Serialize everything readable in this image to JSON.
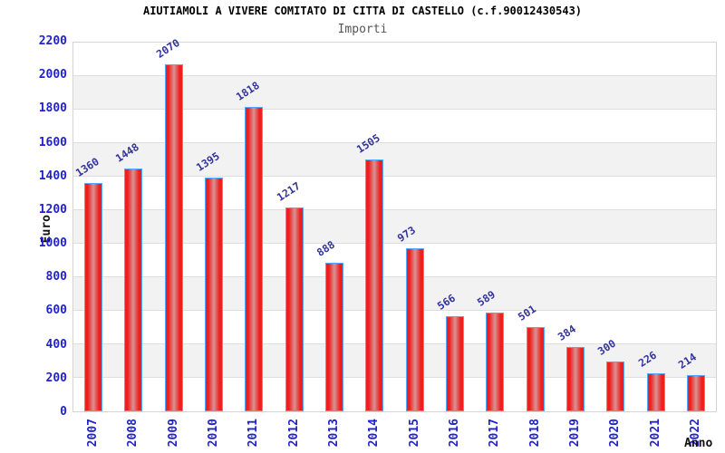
{
  "header": {
    "title": "AIUTIAMOLI A VIVERE COMITATO DI CITTA DI CASTELLO (c.f.90012430543)",
    "subtitle": "Importi"
  },
  "chart_data": {
    "type": "bar",
    "title": "AIUTIAMOLI A VIVERE COMITATO DI CITTA DI CASTELLO (c.f.90012430543)",
    "subtitle": "Importi",
    "xlabel": "Anno",
    "ylabel": "Euro",
    "categories": [
      "2007",
      "2008",
      "2009",
      "2010",
      "2011",
      "2012",
      "2013",
      "2014",
      "2015",
      "2016",
      "2017",
      "2018",
      "2019",
      "2020",
      "2021",
      "2022"
    ],
    "values": [
      1360,
      1448,
      2070,
      1395,
      1818,
      1217,
      888,
      1505,
      973,
      566,
      589,
      501,
      384,
      300,
      226,
      214
    ],
    "yticks": [
      0,
      200,
      400,
      600,
      800,
      1000,
      1200,
      1400,
      1600,
      1800,
      2000,
      2200
    ],
    "ylim": [
      0,
      2200
    ],
    "ytick_step": 200,
    "grid": true,
    "legend": false,
    "bands_alternating": true
  },
  "colors": {
    "bar_edge": "#ee1f1f",
    "bar_center": "#d89494",
    "bar_border": "#55aaff",
    "tick_label": "#2222cc",
    "value_label": "#33339b",
    "band_gray": "#f2f2f2",
    "gridline": "#dedede",
    "plot_border": "#d4d4d4",
    "title": "#000000",
    "subtitle": "#555555",
    "axis_title": "#111111"
  }
}
